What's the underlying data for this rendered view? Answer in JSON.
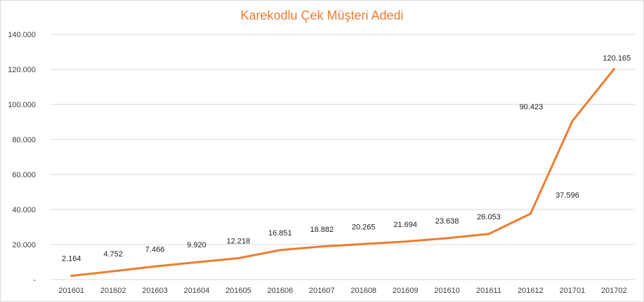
{
  "colors": {
    "line": "#ED7D31",
    "title": "#ED7D31",
    "grid": "#d9d9d9",
    "axis_text": "#404040"
  },
  "chart_data": {
    "type": "line",
    "title": "Karekodlu Çek Müşteri Adedi",
    "xlabel": "",
    "ylabel": "",
    "categories": [
      "201601",
      "201602",
      "201603",
      "201604",
      "201605",
      "201606",
      "201607",
      "201608",
      "201609",
      "201610",
      "201611",
      "201612",
      "201701",
      "201702"
    ],
    "values": [
      2164,
      4752,
      7466,
      9920,
      12218,
      16851,
      18882,
      20265,
      21694,
      23638,
      26053,
      37596,
      90423,
      120165
    ],
    "data_labels": [
      "2.164",
      "4.752",
      "7.466",
      "9.920",
      "12.218",
      "16.851",
      "18.882",
      "20.265",
      "21.694",
      "23.638",
      "26.053",
      "37.596",
      "90.423",
      "120.165"
    ],
    "ylim": [
      0,
      140000
    ],
    "y_ticks": [
      0,
      20000,
      40000,
      60000,
      80000,
      100000,
      120000,
      140000
    ],
    "y_tick_labels": [
      "-",
      "20.000",
      "40.000",
      "60.000",
      "80.000",
      "100.000",
      "120.000",
      "140.000"
    ],
    "grid": true,
    "legend": "none"
  }
}
